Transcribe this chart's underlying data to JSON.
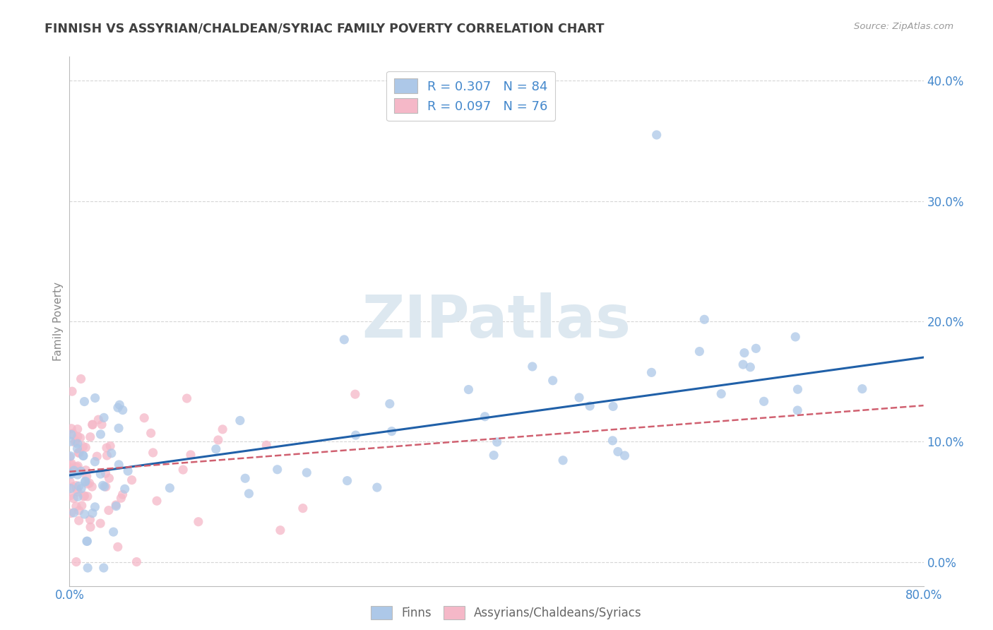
{
  "title": "FINNISH VS ASSYRIAN/CHALDEAN/SYRIAC FAMILY POVERTY CORRELATION CHART",
  "source": "Source: ZipAtlas.com",
  "ylabel": "Family Poverty",
  "finn_R": "R = 0.307",
  "finn_N": "N = 84",
  "assyr_R": "R = 0.097",
  "assyr_N": "N = 76",
  "legend_label_finn": "Finns",
  "legend_label_assyr": "Assyrians/Chaldeans/Syriacs",
  "finn_color": "#adc8e8",
  "assyr_color": "#f5b8c8",
  "finn_line_color": "#2060a8",
  "assyr_line_color": "#d06070",
  "background_color": "#ffffff",
  "grid_color": "#cccccc",
  "title_color": "#404040",
  "axis_label_color": "#4488cc",
  "watermark_color": "#dde8f0",
  "watermark_text": "ZIPatlas",
  "xlim": [
    0.0,
    0.8
  ],
  "ylim": [
    -0.02,
    0.42
  ],
  "xticks": [
    0.0,
    0.1,
    0.2,
    0.3,
    0.4,
    0.5,
    0.6,
    0.7,
    0.8
  ],
  "yticks": [
    0.0,
    0.1,
    0.2,
    0.3,
    0.4
  ],
  "finn_line_x0": 0.0,
  "finn_line_x1": 0.8,
  "finn_line_y0": 0.072,
  "finn_line_y1": 0.17,
  "assyr_line_x0": 0.0,
  "assyr_line_x1": 0.8,
  "assyr_line_y0": 0.075,
  "assyr_line_y1": 0.13
}
